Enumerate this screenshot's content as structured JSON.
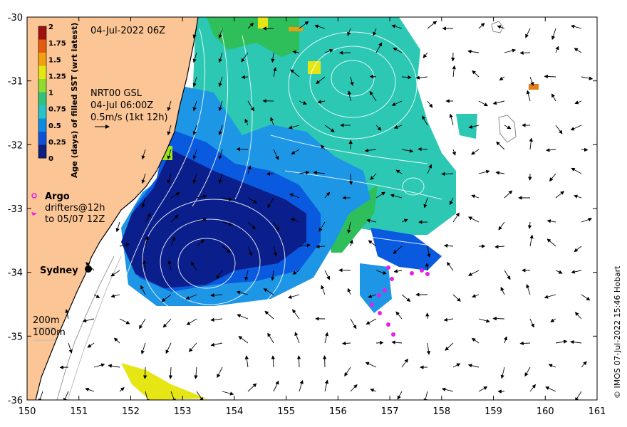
{
  "map": {
    "timestamp": "04-Jul-2022 06Z",
    "product_lines": [
      "NRT00 GSL",
      "04-Jul 06:00Z",
      "0.5m/s (1kt 12h)"
    ],
    "colorbar": {
      "label": "Age (days) of filled SST (wrt latest)",
      "ticks": [
        "0",
        "0.25",
        "0.5",
        "0.75",
        "1",
        "1.25",
        "1.5",
        "1.75",
        "2"
      ],
      "min": 0,
      "max": 2,
      "colors": [
        "#0b1f7e",
        "#0a52d8",
        "#0a8be6",
        "#26c4c8",
        "#2ec27a",
        "#8fdc2e",
        "#e6e610",
        "#f0a010",
        "#e65a10",
        "#a01010"
      ]
    },
    "legend": {
      "argo_label": "Argo",
      "drifter_lines": [
        "drifters@12h",
        "to 05/07 12Z"
      ],
      "argo_color": "#e61ee6",
      "drifter_color": "#e61ee6"
    },
    "place_label": "Sydney",
    "depth_labels": [
      "200m",
      "1000m"
    ],
    "credit": "© IMOS 07-Jul-2022 15:46 Hobart",
    "x_ticks": [
      "150",
      "151",
      "152",
      "153",
      "154",
      "155",
      "156",
      "157",
      "158",
      "159",
      "160",
      "161"
    ],
    "y_ticks": [
      "-30",
      "-31",
      "-32",
      "-33",
      "-34",
      "-35",
      "-36"
    ],
    "x_range": [
      150,
      161
    ],
    "y_range": [
      -36,
      -30
    ],
    "colors": {
      "land": "#fbc595",
      "ocean": "#ffffff",
      "deep_blue": "#0b1f8c",
      "mid_blue": "#0a5ae0",
      "light_blue": "#1e96e6",
      "teal": "#2cc8b4",
      "green": "#2ebf5a",
      "yellow": "#e6e614"
    }
  }
}
